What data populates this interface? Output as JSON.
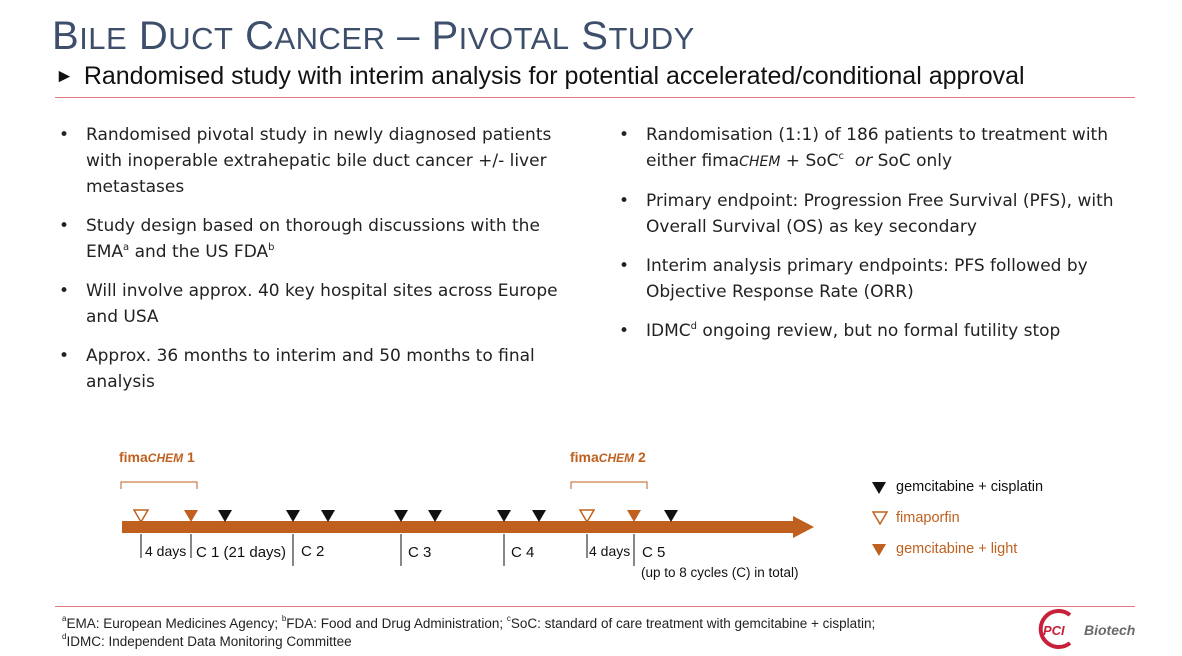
{
  "header": {
    "title_parts": [
      {
        "cap": "B",
        "rest": "ile"
      },
      {
        "cap": "D",
        "rest": "uct"
      },
      {
        "cap": "C",
        "rest": "ancer"
      },
      {
        "cap": "–",
        "rest": ""
      },
      {
        "cap": "P",
        "rest": "ivotal"
      },
      {
        "cap": "S",
        "rest": "tudy"
      }
    ],
    "subtitle_arrow": "►",
    "subtitle": "Randomised study with interim analysis for potential accelerated/conditional approval"
  },
  "left_bullets": [
    {
      "text": "Randomised pivotal study in newly diagnosed patients with inoperable extrahepatic bile duct cancer +/- liver metastases"
    },
    {
      "pre": "Study design based on thorough discussions with the EMA",
      "sup1": "a",
      "mid": " and the US FDA",
      "sup2": "b"
    },
    {
      "text": "Will involve approx. 40 key hospital sites across Europe and USA"
    },
    {
      "text": "Approx. 36 months to interim and 50 months to final analysis"
    }
  ],
  "right_bullets": [
    {
      "pre": "Randomisation (1:1) of 186 patients to treatment with either fima",
      "chem": "CHEM",
      "mid": " + SoC",
      "sup": "c",
      "or": "or",
      "post": " SoC only"
    },
    {
      "text": "Primary endpoint: Progression Free Survival (PFS), with Overall Survival (OS) as key secondary"
    },
    {
      "text": "Interim analysis primary endpoints: PFS followed by Objective Response Rate (ORR)"
    },
    {
      "pre": "IDMC",
      "sup": "d",
      "post": " ongoing review, but no formal futility stop"
    }
  ],
  "timeline": {
    "group1_label": {
      "fima": "fima",
      "chem": "CHEM",
      "num": " 1"
    },
    "group2_label": {
      "fima": "fima",
      "chem": "CHEM",
      "num": " 2"
    },
    "labels": {
      "days1": "4 days",
      "c1": "C 1 (21 days)",
      "c2": "C 2",
      "c3": "C 3",
      "c4": "C 4",
      "days2": "4 days",
      "c5": "C 5",
      "note": "(up to 8 cycles (C) in total)"
    },
    "legend": [
      {
        "label": "gemcitabine + cisplatin",
        "color": "#111111",
        "icon": "filled-triangle"
      },
      {
        "label": "fimaporfin",
        "color": "#c0601f",
        "icon": "outline-triangle"
      },
      {
        "label": "gemcitabine + light",
        "color": "#c0601f",
        "icon": "filled-triangle"
      }
    ],
    "colors": {
      "arrow": "#c0601f",
      "black": "#111111"
    }
  },
  "footnotes": {
    "line1": [
      {
        "sup": "a",
        "text": "EMA: European Medicines Agency;  "
      },
      {
        "sup": "b",
        "text": "FDA: Food and Drug Administration;  "
      },
      {
        "sup": "c",
        "text": "SoC: standard of care treatment with gemcitabine + cisplatin;"
      }
    ],
    "line2": [
      {
        "sup": "d",
        "text": "IDMC: Independent Data Monitoring Committee"
      }
    ]
  },
  "logo": {
    "pci": "PCI",
    "biotech": "Biotech",
    "color": "#c8203a"
  }
}
